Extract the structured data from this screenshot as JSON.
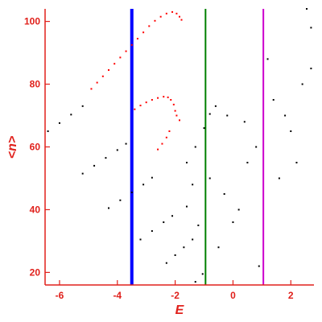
{
  "chart_data": {
    "type": "scatter",
    "title": "",
    "xlabel": "E",
    "ylabel": "<n>",
    "xlim": [
      -6.5,
      2.8
    ],
    "ylim": [
      16,
      104
    ],
    "xticks": [
      -6,
      -4,
      -2,
      0,
      2
    ],
    "yticks": [
      20,
      40,
      60,
      80,
      100
    ],
    "xtick_labels": [
      "-6",
      "-4",
      "-2",
      "0",
      "2"
    ],
    "ytick_labels": [
      "20",
      "40",
      "60",
      "80",
      "100"
    ],
    "grid": false,
    "legend": "none",
    "axis_color": "#e0201b",
    "vertical_lines": [
      {
        "x": -3.5,
        "color": "#0000ff",
        "width": "thick"
      },
      {
        "x": -0.95,
        "color": "#008000",
        "width": "normal"
      },
      {
        "x": 1.05,
        "color": "#cc00cc",
        "width": "normal"
      }
    ],
    "series": [
      {
        "color": "#ff0000",
        "points": [
          [
            -4.9,
            78.5
          ],
          [
            -4.7,
            80.5
          ],
          [
            -4.5,
            82.5
          ],
          [
            -4.3,
            84.5
          ],
          [
            -4.1,
            86.5
          ],
          [
            -3.9,
            88.5
          ],
          [
            -3.7,
            90.5
          ],
          [
            -3.5,
            92.5
          ],
          [
            -3.3,
            94.5
          ],
          [
            -3.1,
            96.5
          ],
          [
            -2.9,
            98.5
          ],
          [
            -2.7,
            100.2
          ],
          [
            -2.5,
            101.5
          ],
          [
            -2.3,
            102.5
          ],
          [
            -2.1,
            103.0
          ],
          [
            -1.95,
            102.5
          ],
          [
            -1.85,
            101.5
          ],
          [
            -1.78,
            100.5
          ],
          [
            -3.4,
            72.0
          ],
          [
            -3.2,
            73.2
          ],
          [
            -3.0,
            74.2
          ],
          [
            -2.8,
            75.0
          ],
          [
            -2.6,
            75.6
          ],
          [
            -2.4,
            76.0
          ],
          [
            -2.25,
            75.8
          ],
          [
            -2.15,
            75.0
          ],
          [
            -2.05,
            73.5
          ],
          [
            -2.0,
            71.5
          ],
          [
            -1.95,
            70.0
          ],
          [
            -1.85,
            68.5
          ],
          [
            -2.2,
            65.0
          ],
          [
            -2.3,
            63.0
          ],
          [
            -2.45,
            61.0
          ],
          [
            -2.6,
            59.2
          ]
        ]
      },
      {
        "color": "#000000",
        "points": [
          [
            -6.4,
            65.0
          ],
          [
            -6.0,
            67.6
          ],
          [
            -5.6,
            70.3
          ],
          [
            -5.2,
            73.0
          ],
          [
            -5.2,
            51.5
          ],
          [
            -4.8,
            54.0
          ],
          [
            -4.4,
            56.5
          ],
          [
            -4.0,
            59.0
          ],
          [
            -3.7,
            61.0
          ],
          [
            -4.3,
            40.5
          ],
          [
            -3.9,
            43.0
          ],
          [
            -3.5,
            45.5
          ],
          [
            -3.1,
            48.0
          ],
          [
            -2.8,
            50.2
          ],
          [
            -3.2,
            30.5
          ],
          [
            -2.8,
            33.2
          ],
          [
            -2.4,
            36.0
          ],
          [
            -2.1,
            38.0
          ],
          [
            -2.3,
            23.0
          ],
          [
            -2.0,
            25.5
          ],
          [
            -1.7,
            28.0
          ],
          [
            -1.4,
            30.5
          ],
          [
            -1.3,
            17.0
          ],
          [
            -1.05,
            19.5
          ],
          [
            -1.6,
            55.0
          ],
          [
            -1.3,
            60.0
          ],
          [
            -1.0,
            66.0
          ],
          [
            -0.8,
            70.5
          ],
          [
            -0.6,
            73.0
          ],
          [
            -0.2,
            70.0
          ],
          [
            0.4,
            68.0
          ],
          [
            0.8,
            60.0
          ],
          [
            -0.8,
            50.0
          ],
          [
            -0.3,
            45.0
          ],
          [
            0.2,
            40.0
          ],
          [
            0.5,
            55.0
          ],
          [
            1.4,
            75.0
          ],
          [
            1.8,
            70.0
          ],
          [
            2.0,
            65.0
          ],
          [
            2.2,
            55.0
          ],
          [
            1.6,
            50.0
          ],
          [
            2.4,
            80.0
          ],
          [
            2.7,
            85.0
          ],
          [
            1.2,
            88.0
          ],
          [
            2.55,
            104.0
          ],
          [
            2.7,
            98.0
          ],
          [
            -1.4,
            48.0
          ],
          [
            -1.6,
            41.0
          ],
          [
            -1.2,
            35.0
          ],
          [
            0.9,
            22.0
          ],
          [
            -0.5,
            28.0
          ],
          [
            0.0,
            36.0
          ]
        ]
      }
    ]
  }
}
